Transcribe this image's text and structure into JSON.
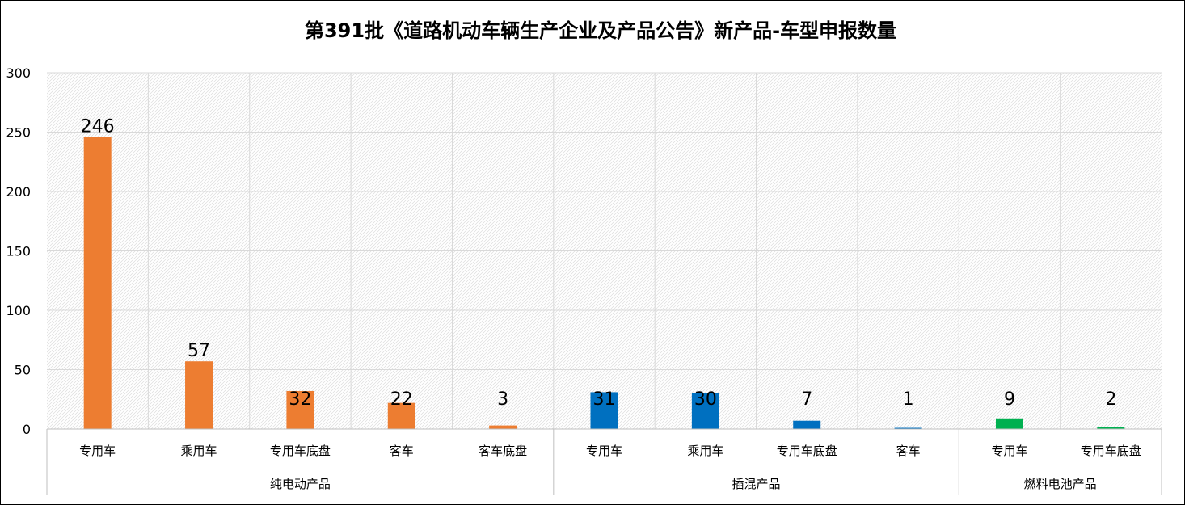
{
  "chart_data": {
    "type": "bar",
    "title": "第391批《道路机动车辆生产企业及产品公告》新产品-车型申报数量",
    "xlabel": "",
    "ylabel": "",
    "ylim": [
      0,
      300
    ],
    "yticks": [
      "0",
      "50",
      "100",
      "150",
      "200",
      "250",
      "300"
    ],
    "grid": true,
    "legend": "none",
    "groups": [
      {
        "name": "纯电动产品",
        "color": "#ED7D31",
        "categories": [
          "专用车",
          "乘用车",
          "专用车底盘",
          "客车",
          "客车底盘"
        ],
        "values": [
          246,
          57,
          32,
          22,
          3
        ]
      },
      {
        "name": "插混产品",
        "color": "#0070C0",
        "categories": [
          "专用车",
          "乘用车",
          "专用车底盘",
          "客车"
        ],
        "values": [
          31,
          30,
          7,
          1
        ]
      },
      {
        "name": "燃料电池产品",
        "color": "#00B050",
        "categories": [
          "专用车",
          "专用车底盘"
        ],
        "values": [
          9,
          2
        ]
      }
    ]
  }
}
